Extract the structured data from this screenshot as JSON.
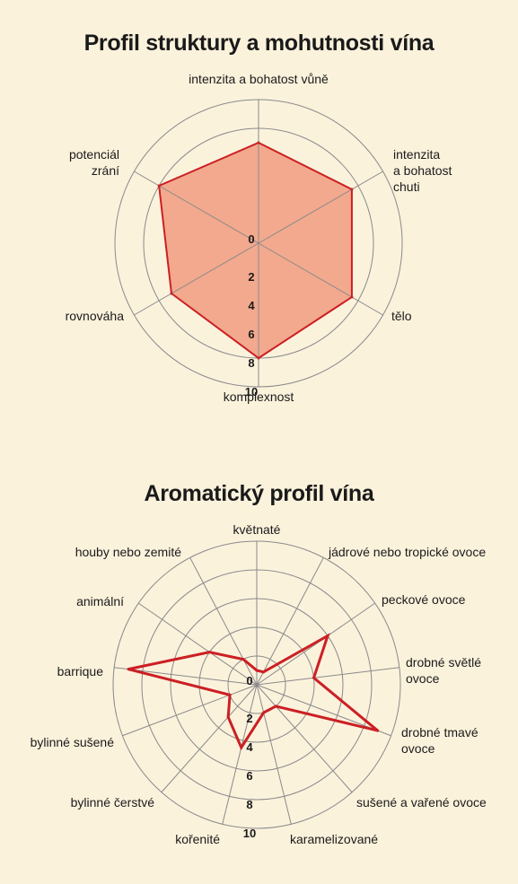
{
  "chart_data": [
    {
      "type": "radar",
      "title": "Profil struktury a mohutnosti vína",
      "rlim": [
        0,
        10
      ],
      "ticks": [
        "0",
        "2",
        "4",
        "6",
        "8",
        "10"
      ],
      "axes": [
        [
          "intenzita a bohatost vůně"
        ],
        [
          "intenzita",
          "a bohatost",
          "chuti"
        ],
        [
          "tělo"
        ],
        [
          "komplexnost"
        ],
        [
          "rovnováha"
        ],
        [
          "potenciál",
          "zrání"
        ]
      ],
      "series": [
        {
          "values": [
            7,
            7.5,
            7.5,
            8,
            7,
            8
          ]
        }
      ],
      "colors": {
        "fill": "#f2a98e",
        "line": "#cc1f24",
        "grid": "#8a8a8a"
      },
      "filled": true
    },
    {
      "type": "radar",
      "title": "Aromatický profil vína",
      "rlim": [
        0,
        10
      ],
      "ticks": [
        "0",
        "2",
        "4",
        "6",
        "8",
        "10"
      ],
      "axes": [
        [
          "květnaté"
        ],
        [
          "jádrové nebo tropické ovoce"
        ],
        [
          "peckové ovoce"
        ],
        [
          "drobné světlé",
          "ovoce"
        ],
        [
          "drobné tmavé",
          "ovoce"
        ],
        [
          "sušené a vařené ovoce"
        ],
        [
          "karamelizované"
        ],
        [
          "kořenité"
        ],
        [
          "bylinné čerstvé"
        ],
        [
          "bylinné sušené"
        ],
        [
          "barrique"
        ],
        [
          "animální"
        ],
        [
          "houby nebo zemité"
        ]
      ],
      "series": [
        {
          "values": [
            1,
            1,
            6,
            4,
            9,
            2,
            2,
            4.5,
            3,
            2,
            9,
            4,
            2
          ]
        }
      ],
      "colors": {
        "line": "#cc1f24",
        "grid": "#8a8a8a"
      },
      "filled": false
    }
  ]
}
